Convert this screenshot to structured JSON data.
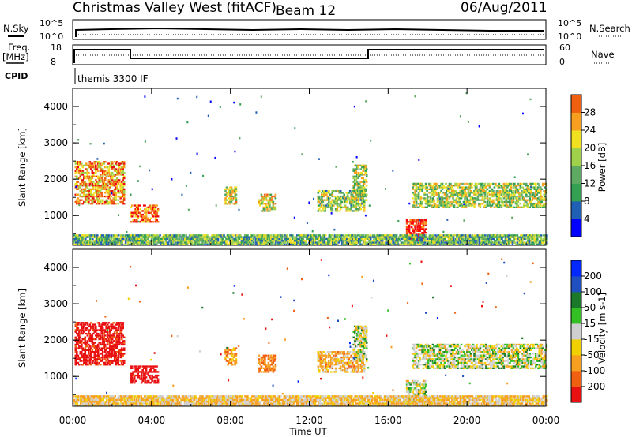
{
  "header": {
    "station": "Christmas Valley West (fitACF)",
    "beam": "Beam 12",
    "date": "06/Aug/2011"
  },
  "top_panels": {
    "nsky_label": "N.Sky",
    "nsearch_label": "N.Search",
    "noise_ticks": [
      "10^5",
      "10^0"
    ],
    "freq_label": "Freq.",
    "freq_unit": "[MHz]",
    "freq_ticks": [
      "18",
      "8"
    ],
    "nave_label": "Nave",
    "nave_ticks": [
      "60",
      "0"
    ],
    "cpid_label": "CPID",
    "cpid_text": "themis 3300 IF"
  },
  "colors": {
    "power_scale": [
      "#0000ff",
      "#1f5fb4",
      "#33a052",
      "#5faa63",
      "#9fd24a",
      "#f0e020",
      "#f7a020",
      "#f06010",
      "#e81010",
      "#ff0000"
    ],
    "velocity_scale": [
      "#0028ff",
      "#2050c0",
      "#1a7a2a",
      "#34c024",
      "#cfcfcf",
      "#f0d000",
      "#f7a020",
      "#f06010",
      "#e81010"
    ]
  },
  "chart_data": [
    {
      "type": "heatmap",
      "name": "power",
      "xlabel": "",
      "ylabel": "Slant Range [km]",
      "x_ticks": [
        "00:00",
        "04:00",
        "08:00",
        "12:00",
        "16:00",
        "20:00",
        "00:00"
      ],
      "xlim_hours": [
        0,
        24
      ],
      "ylim": [
        180,
        4500
      ],
      "y_ticks": [
        1000,
        2000,
        3000,
        4000
      ],
      "colorbar": {
        "label": "Power [dB]",
        "ticks": [
          "4",
          "8",
          "12",
          "16",
          "20",
          "24",
          "28"
        ],
        "range": [
          0,
          30
        ]
      },
      "regions": [
        {
          "t": [
            0.1,
            2.6
          ],
          "r": [
            1300,
            2500
          ],
          "level": 0.65
        },
        {
          "t": [
            2.9,
            4.3
          ],
          "r": [
            800,
            1300
          ],
          "level": 0.75
        },
        {
          "t": [
            7.7,
            8.3
          ],
          "r": [
            1300,
            1800
          ],
          "level": 0.5
        },
        {
          "t": [
            9.4,
            10.3
          ],
          "r": [
            1100,
            1600
          ],
          "level": 0.5
        },
        {
          "t": [
            12.4,
            14.8
          ],
          "r": [
            1100,
            1700
          ],
          "level": 0.4
        },
        {
          "t": [
            14.2,
            14.9
          ],
          "r": [
            1400,
            2400
          ],
          "level": 0.45
        },
        {
          "t": [
            16.9,
            17.9
          ],
          "r": [
            300,
            900
          ],
          "level": 0.85
        },
        {
          "t": [
            17.2,
            24.0
          ],
          "r": [
            1200,
            1900
          ],
          "level": 0.45
        },
        {
          "t": [
            0.0,
            24.0
          ],
          "r": [
            180,
            450
          ],
          "level": 0.35
        }
      ]
    },
    {
      "type": "heatmap",
      "name": "velocity",
      "xlabel": "Time UT",
      "ylabel": "Slant Range [km]",
      "x_ticks": [
        "00:00",
        "04:00",
        "08:00",
        "12:00",
        "16:00",
        "20:00",
        "00:00"
      ],
      "xlim_hours": [
        0,
        24
      ],
      "ylim": [
        180,
        4500
      ],
      "y_ticks": [
        1000,
        2000,
        3000,
        4000
      ],
      "colorbar": {
        "label": "Velocity [m s-1]",
        "ticks": [
          "200",
          "100",
          "50",
          "15",
          "-15",
          "-50",
          "-100",
          "-200"
        ],
        "range": [
          -250,
          250
        ]
      },
      "regions": [
        {
          "t": [
            0.1,
            2.6
          ],
          "r": [
            1300,
            2500
          ],
          "value": -180
        },
        {
          "t": [
            2.9,
            4.3
          ],
          "r": [
            800,
            1300
          ],
          "value": -220
        },
        {
          "t": [
            7.7,
            8.3
          ],
          "r": [
            1300,
            1800
          ],
          "value": -60
        },
        {
          "t": [
            9.4,
            10.3
          ],
          "r": [
            1100,
            1600
          ],
          "value": -80
        },
        {
          "t": [
            12.4,
            14.8
          ],
          "r": [
            1100,
            1700
          ],
          "value": -40
        },
        {
          "t": [
            14.2,
            14.9
          ],
          "r": [
            1400,
            2400
          ],
          "value": 0
        },
        {
          "t": [
            16.9,
            17.9
          ],
          "r": [
            300,
            900
          ],
          "value": 0
        },
        {
          "t": [
            17.2,
            24.0
          ],
          "r": [
            1200,
            1900
          ],
          "value": 0
        },
        {
          "t": [
            0.0,
            24.0
          ],
          "r": [
            180,
            450
          ],
          "value": -30
        }
      ]
    }
  ]
}
